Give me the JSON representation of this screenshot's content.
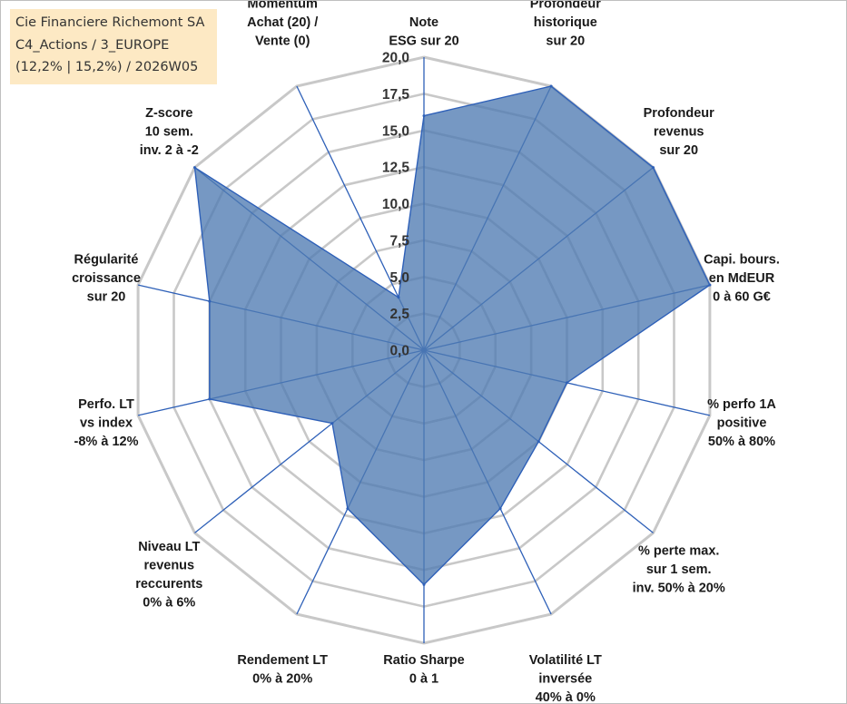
{
  "header": {
    "line1": "Cie Financiere Richemont SA",
    "line2": "C4_Actions / 3_EUROPE",
    "line3": "(12,2% | 15,2%) / 2026W05"
  },
  "colors": {
    "fill": "#4f7bb2",
    "line": "#2e60b8",
    "grid": "#c8c8c8",
    "title_bg": "#fde9c4"
  },
  "chart_data": {
    "type": "radar",
    "r_min": 0,
    "r_max": 20,
    "tick_step": 2.5,
    "tick_labels": [
      "0,0",
      "2,5",
      "5,0",
      "7,5",
      "10,0",
      "12,5",
      "15,0",
      "17,5",
      "20,0"
    ],
    "axes": [
      {
        "label": [
          "Note",
          "ESG sur 20"
        ],
        "value": 16
      },
      {
        "label": [
          "Profondeur",
          "historique",
          "sur 20"
        ],
        "value": 20
      },
      {
        "label": [
          "Profondeur",
          "revenus",
          "sur 20"
        ],
        "value": 20
      },
      {
        "label": [
          "Capi. bours.",
          "en MdEUR",
          "0 à 60 G€"
        ],
        "value": 20
      },
      {
        "label": [
          "% perfo 1A",
          "positive",
          "50% à 80%"
        ],
        "value": 10
      },
      {
        "label": [
          "% perte max.",
          "sur 1 sem.",
          "inv. 50% à 20%"
        ],
        "value": 10
      },
      {
        "label": [
          "Volatilité LT",
          "inversée",
          "40% à 0%"
        ],
        "value": 12
      },
      {
        "label": [
          "Ratio Sharpe",
          "0 à 1"
        ],
        "value": 16
      },
      {
        "label": [
          "Rendement LT",
          "0% à 20%"
        ],
        "value": 12
      },
      {
        "label": [
          "Niveau LT",
          "revenus",
          "reccurents",
          "0% à 6%"
        ],
        "value": 8
      },
      {
        "label": [
          "Perfo. LT",
          "vs index",
          "-8% à 12%"
        ],
        "value": 15
      },
      {
        "label": [
          "Régularité",
          "croissance",
          "sur 20"
        ],
        "value": 15
      },
      {
        "label": [
          "Z-score",
          "10 sem.",
          "inv. 2 à -2"
        ],
        "value": 20
      },
      {
        "label": [
          "Momentum",
          "Achat (20) /",
          "Vente (0)"
        ],
        "value": 4
      }
    ]
  }
}
